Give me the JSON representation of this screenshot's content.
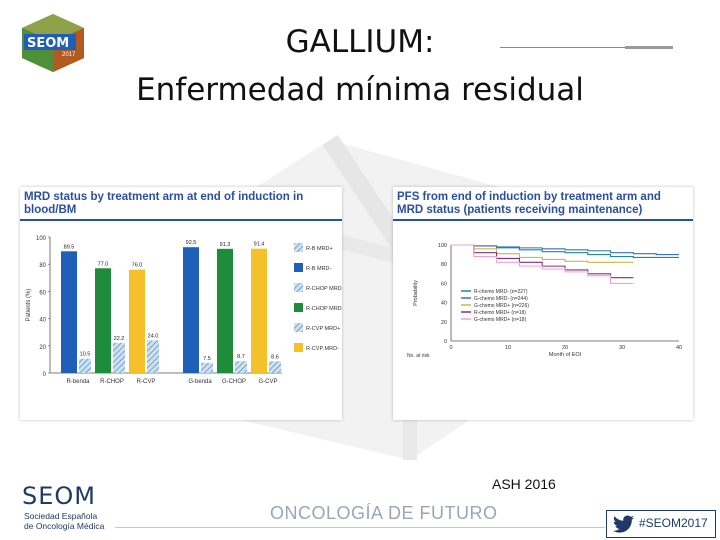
{
  "slide": {
    "title_line1": "GALLIUM:",
    "title_line2": "Enfermedad mínima residual",
    "source": "ASH 2016",
    "footer_logo": "SEOM",
    "footer_logo_sub1": "Sociedad Española",
    "footer_logo_sub2": "de Oncología Médica",
    "slogan": "ONCOLOGÍA DE FUTURO",
    "hashtag": "#SEOM2017",
    "logo_text": "SEOM",
    "logo_year": "2017",
    "colors": {
      "title_blue": "#2b4fa0",
      "brand_navy": "#1f3a66"
    }
  },
  "chart_data": [
    {
      "type": "bar",
      "title": "MRD status by treatment arm at end of induction in blood/BM",
      "ylabel": "Patients (%)",
      "ylim": [
        0,
        100
      ],
      "yticks": [
        0,
        20,
        40,
        60,
        80,
        100
      ],
      "groups": [
        {
          "arm": "R",
          "categories": [
            "R-benda",
            "R-CHOP",
            "R-CVP"
          ]
        },
        {
          "arm": "G",
          "categories": [
            "G-benda",
            "G-CHOP",
            "G-CVP"
          ]
        }
      ],
      "bars": [
        {
          "category": "R-benda",
          "mrd_neg": 89.5,
          "unk": 10.5,
          "mrd_neg_label": "89.5",
          "unk_label": "10.5"
        },
        {
          "category": "R-CHOP",
          "mrd_neg": 77.0,
          "unk": 22.2,
          "mrd_neg_label": "77.0",
          "unk_label": "22.2"
        },
        {
          "category": "R-CVP",
          "mrd_neg": 76.0,
          "unk": 24.0,
          "mrd_neg_label": "76.0",
          "unk_label": "24.0"
        },
        {
          "category": "G-benda",
          "mrd_neg": 92.5,
          "unk": 7.5,
          "mrd_neg_label": "92.5",
          "unk_label": "7.5"
        },
        {
          "category": "G-CHOP",
          "mrd_neg": 91.3,
          "unk": 8.7,
          "mrd_neg_label": "91.3",
          "unk_label": "8.7"
        },
        {
          "category": "G-CVP",
          "mrd_neg": 91.4,
          "unk": 8.6,
          "mrd_neg_label": "91.4",
          "unk_label": "8.6"
        }
      ],
      "legend": [
        {
          "label": "R-B MRD+",
          "color": "#7fb3d9",
          "pattern": "hatch"
        },
        {
          "label": "R-B MRD-",
          "color": "#1f5fb8",
          "pattern": "solid"
        },
        {
          "label": "R-CHOP MRD+",
          "color": "#9cc79f",
          "pattern": "hatch"
        },
        {
          "label": "R-CHOP MRD-",
          "color": "#1e8c3a",
          "pattern": "solid"
        },
        {
          "label": "R-CVP MRD+",
          "color": "#f5d98a",
          "pattern": "hatch"
        },
        {
          "label": "R-CVP MRD-",
          "color": "#f5c12b",
          "pattern": "solid"
        }
      ],
      "colors": {
        "benda": "#1f5fb8",
        "chop": "#1e8c3a",
        "cvp": "#f5c12b"
      }
    },
    {
      "type": "line",
      "title": "PFS from end of induction by treatment arm and MRD status (patients receiving maintenance)",
      "ylabel": "Probability",
      "xlabel": "Month of EOI",
      "xlim": [
        0,
        40
      ],
      "ylim": [
        0,
        100
      ],
      "xticks": [
        0,
        10,
        20,
        30,
        40
      ],
      "yticks": [
        0,
        20,
        40,
        60,
        80,
        100
      ],
      "series": [
        {
          "name": "R-chemo MRD- (n=227)",
          "color": "#1f8a8a",
          "x": [
            0,
            4,
            8,
            12,
            16,
            20,
            24,
            28,
            32,
            36,
            40
          ],
          "y": [
            100,
            99,
            97,
            95,
            93,
            92,
            90,
            88,
            87,
            87,
            87
          ]
        },
        {
          "name": "G-chemo MRD- (n=244)",
          "color": "#3b6fc4",
          "x": [
            0,
            4,
            8,
            12,
            16,
            20,
            24,
            28,
            32,
            36,
            40
          ],
          "y": [
            100,
            99,
            98,
            97,
            96,
            95,
            94,
            92,
            91,
            90,
            90
          ]
        },
        {
          "name": "G-chemo MRD+ (n=226)",
          "color": "#c9b84a",
          "x": [
            0,
            4,
            8,
            12,
            16,
            20,
            24,
            28,
            32
          ],
          "y": [
            100,
            96,
            91,
            87,
            85,
            83,
            82,
            82,
            82
          ]
        },
        {
          "name": "R-chemo MRD+ (n=18)",
          "color": "#8a2f7a",
          "x": [
            0,
            4,
            8,
            12,
            16,
            20,
            24,
            28,
            32
          ],
          "y": [
            100,
            92,
            86,
            82,
            78,
            74,
            70,
            66,
            66
          ]
        },
        {
          "name": "G-chemo MRD+ (n=18)",
          "color": "#e6a3e0",
          "x": [
            0,
            4,
            8,
            12,
            16,
            20,
            24,
            28,
            32
          ],
          "y": [
            100,
            88,
            82,
            78,
            75,
            72,
            68,
            60,
            60
          ]
        }
      ],
      "risk_table_label": "No. at risk"
    }
  ]
}
